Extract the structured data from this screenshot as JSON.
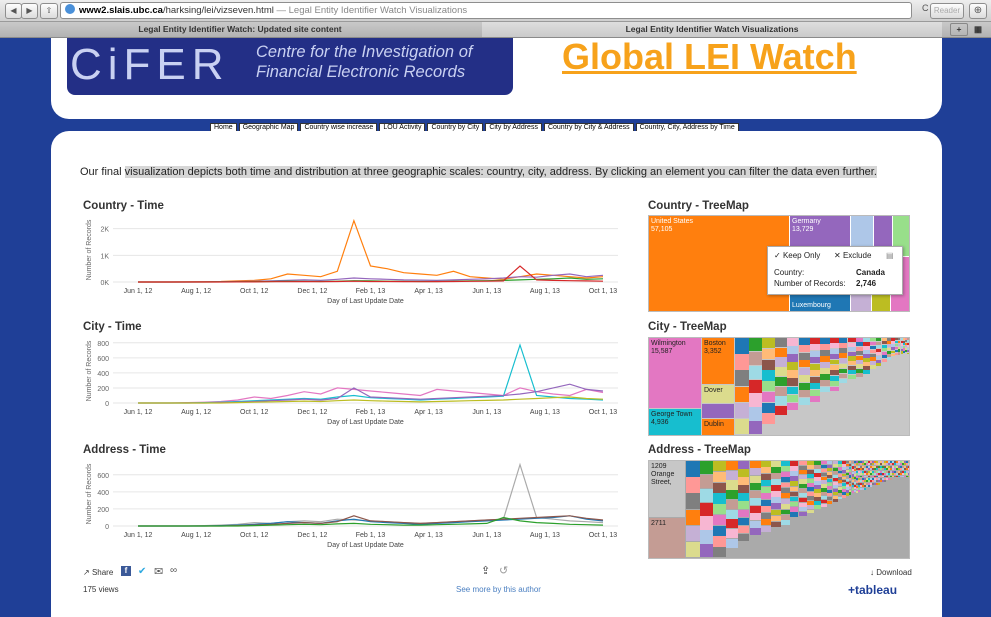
{
  "browser": {
    "back_glyph": "◀",
    "forward_glyph": "▶",
    "share_glyph": "⇧",
    "reload_glyph": "C",
    "reader_label": "Reader",
    "download_glyph": "⊕",
    "url_host": "www2.slais.ubc.ca",
    "url_path": "/harksing/lei/vizseven.html",
    "url_title": " — Legal Entity Identifier Watch Visualizations",
    "tab_left": "Legal Entity Identifier Watch: Updated site content",
    "tab_right": "Legal Entity Identifier Watch Visualizations",
    "tab_add_glyph": "+"
  },
  "header": {
    "logo_text": "CiFER",
    "tagline_1": "Centre for the Investigation of",
    "tagline_2": "Financial Electronic Records",
    "site_title": "Global LEI Watch"
  },
  "nav": [
    "Home",
    "Geographic Map",
    "Country wise increase",
    "LOU Activity",
    "Country by City",
    "City by Address",
    "Country by City & Address",
    "Country, City, Address by Time"
  ],
  "intro": {
    "prefix": "Our final ",
    "highlighted": "visualization depicts both time and distribution at three geographic scales: country, city, address. By clicking an element you can filter the data even further."
  },
  "sections": {
    "country_time": "Country - Time",
    "country_tree": "Country - TreeMap",
    "city_time": "City - Time",
    "city_tree": "City - TreeMap",
    "address_time": "Address - Time",
    "address_tree": "Address - TreeMap"
  },
  "chart_data": [
    {
      "type": "line",
      "title": "Country - Time",
      "xlabel": "Day of Last Update Date",
      "ylabel": "Number of Records",
      "x_ticks": [
        "Jun 1, 12",
        "Aug 1, 12",
        "Oct 1, 12",
        "Dec 1, 12",
        "Feb 1, 13",
        "Apr 1, 13",
        "Jun 1, 13",
        "Aug 1, 13",
        "Oct 1, 13"
      ],
      "y_ticks": [
        "0K",
        "1K",
        "2K"
      ],
      "ylim": [
        0,
        2400
      ],
      "grid": true,
      "series": [
        {
          "color": "#ff7f0e",
          "values": [
            0,
            0,
            0,
            5,
            10,
            20,
            40,
            60,
            120,
            300,
            250,
            200,
            400,
            2300,
            600,
            500,
            350,
            300,
            250,
            400,
            200,
            150,
            100,
            200,
            300,
            250,
            200,
            150,
            200
          ]
        },
        {
          "color": "#9467bd",
          "values": [
            0,
            0,
            0,
            0,
            5,
            10,
            20,
            30,
            40,
            60,
            80,
            60,
            100,
            150,
            120,
            100,
            80,
            70,
            60,
            80,
            100,
            120,
            150,
            200,
            180,
            250,
            300,
            200,
            250
          ]
        },
        {
          "color": "#2ca02c",
          "values": [
            0,
            0,
            0,
            0,
            0,
            5,
            10,
            15,
            20,
            30,
            25,
            20,
            30,
            50,
            40,
            30,
            25,
            20,
            20,
            30,
            40,
            50,
            60,
            80,
            100,
            120,
            150,
            100,
            120
          ]
        },
        {
          "color": "#d62728",
          "values": [
            0,
            0,
            0,
            0,
            0,
            0,
            5,
            5,
            10,
            10,
            15,
            10,
            20,
            30,
            20,
            20,
            15,
            10,
            15,
            20,
            25,
            30,
            40,
            600,
            80,
            60,
            50,
            40,
            30
          ]
        }
      ]
    },
    {
      "type": "line",
      "title": "City - Time",
      "xlabel": "Day of Last Update Date",
      "ylabel": "Number of Records",
      "x_ticks": [
        "Jun 1, 12",
        "Aug 1, 12",
        "Oct 1, 12",
        "Dec 1, 12",
        "Feb 1, 13",
        "Apr 1, 13",
        "Jun 1, 13",
        "Aug 1, 13",
        "Oct 1, 13"
      ],
      "y_ticks": [
        "0",
        "200",
        "400",
        "600",
        "800"
      ],
      "ylim": [
        0,
        850
      ],
      "grid": true,
      "series": [
        {
          "color": "#e377c2",
          "values": [
            0,
            0,
            0,
            5,
            10,
            20,
            40,
            80,
            60,
            100,
            150,
            120,
            200,
            180,
            160,
            140,
            120,
            100,
            180,
            160,
            140,
            120,
            100,
            200,
            150,
            120,
            100,
            180,
            140
          ]
        },
        {
          "color": "#17becf",
          "values": [
            0,
            0,
            0,
            0,
            5,
            10,
            20,
            30,
            40,
            50,
            60,
            50,
            80,
            100,
            70,
            60,
            50,
            40,
            50,
            60,
            70,
            80,
            90,
            770,
            100,
            80,
            60,
            50,
            40
          ]
        },
        {
          "color": "#9467bd",
          "values": [
            0,
            0,
            0,
            0,
            0,
            5,
            10,
            20,
            30,
            40,
            50,
            40,
            60,
            200,
            80,
            70,
            60,
            50,
            60,
            70,
            80,
            90,
            100,
            120,
            150,
            200,
            250,
            180,
            160
          ]
        },
        {
          "color": "#bcbd22",
          "values": [
            0,
            0,
            0,
            0,
            0,
            0,
            5,
            10,
            15,
            20,
            25,
            20,
            30,
            40,
            30,
            25,
            20,
            15,
            20,
            25,
            30,
            35,
            40,
            50,
            60,
            70,
            80,
            60,
            50
          ]
        }
      ]
    },
    {
      "type": "line",
      "title": "Address - Time",
      "xlabel": "Day of Last Update Date",
      "ylabel": "Number of Records",
      "x_ticks": [
        "Jun 1, 12",
        "Aug 1, 12",
        "Oct 1, 12",
        "Dec 1, 12",
        "Feb 1, 13",
        "Apr 1, 13",
        "Jun 1, 13",
        "Aug 1, 13",
        "Oct 1, 13"
      ],
      "y_ticks": [
        "0",
        "200",
        "400",
        "600"
      ],
      "ylim": [
        0,
        750
      ],
      "grid": true,
      "series": [
        {
          "color": "#aaaaaa",
          "values": [
            0,
            0,
            0,
            0,
            5,
            10,
            20,
            40,
            30,
            50,
            60,
            50,
            80,
            70,
            60,
            50,
            40,
            30,
            40,
            50,
            60,
            70,
            80,
            720,
            100,
            80,
            60,
            50,
            40
          ]
        },
        {
          "color": "#1f77b4",
          "values": [
            0,
            0,
            0,
            0,
            0,
            5,
            10,
            20,
            30,
            50,
            40,
            30,
            60,
            80,
            50,
            40,
            30,
            20,
            30,
            40,
            50,
            60,
            70,
            80,
            90,
            100,
            120,
            80,
            60
          ]
        },
        {
          "color": "#8c564b",
          "values": [
            0,
            0,
            0,
            0,
            0,
            0,
            5,
            10,
            20,
            30,
            40,
            30,
            50,
            120,
            60,
            50,
            40,
            30,
            40,
            50,
            60,
            70,
            80,
            90,
            100,
            110,
            120,
            90,
            70
          ]
        },
        {
          "color": "#2ca02c",
          "values": [
            0,
            0,
            0,
            0,
            0,
            0,
            0,
            5,
            10,
            15,
            20,
            15,
            25,
            30,
            20,
            15,
            10,
            10,
            15,
            20,
            25,
            30,
            100,
            60,
            40,
            30,
            20,
            15,
            10
          ]
        }
      ]
    }
  ],
  "country_treemap": {
    "cells": [
      {
        "label": "United States",
        "value": "57,105",
        "color": "#ff7f0e"
      },
      {
        "label": "Germany",
        "value": "13,729",
        "color": "#9467bd"
      },
      {
        "label": "Luxembourg",
        "value": "",
        "color": "#1f77b4"
      }
    ],
    "tooltip": {
      "keep_only": "Keep Only",
      "exclude": "Exclude",
      "country_label": "Country:",
      "country_value": "Canada",
      "records_label": "Number of Records:",
      "records_value": "2,746"
    }
  },
  "city_treemap": {
    "cells": [
      {
        "label": "Wilmington",
        "value": "15,587",
        "color": "#e377c2"
      },
      {
        "label": "Boston",
        "value": "3,352",
        "color": "#ff7f0e"
      },
      {
        "label": "Dover",
        "value": "",
        "color": "#dbdb8d"
      },
      {
        "label": "George Town",
        "value": "4,936",
        "color": "#17becf"
      },
      {
        "label": "Dublin",
        "value": "",
        "color": "#ff7f0e"
      }
    ]
  },
  "address_treemap": {
    "cells": [
      {
        "label": "1209 Orange Street,",
        "value": "",
        "color": "#c7c7c7"
      },
      {
        "label": "2711",
        "value": "",
        "color": "#c49c94"
      }
    ]
  },
  "footer": {
    "share_label": "Share",
    "download_label": "Download",
    "views": "175 views",
    "more_link": "See more by this author",
    "tableau_logo": "+tableau"
  }
}
